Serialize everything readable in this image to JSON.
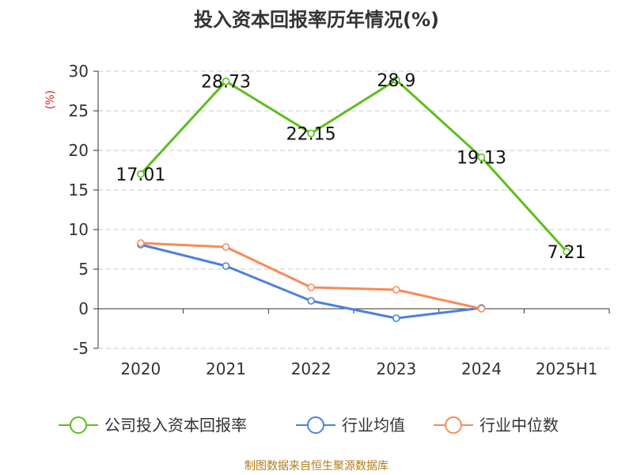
{
  "chart_data": {
    "type": "line",
    "title": "投入资本回报率历年情况(%)",
    "ylabel": "(%)",
    "xlabel": "",
    "categories": [
      "2020",
      "2021",
      "2022",
      "2023",
      "2024",
      "2025H1"
    ],
    "ylim": [
      -5,
      30
    ],
    "yticks": [
      30,
      25,
      20,
      15,
      10,
      5,
      0,
      -5
    ],
    "grid": true,
    "legend_position": "bottom",
    "series": [
      {
        "name": "公司投入资本回报率",
        "color": "#5cbf1c",
        "values": [
          17.01,
          28.73,
          22.15,
          28.9,
          19.13,
          7.21
        ],
        "labels": [
          "17.01",
          "28.73",
          "22.15",
          "28.9",
          "19.13",
          "7.21"
        ]
      },
      {
        "name": "行业均值",
        "color": "#4e7fdc",
        "values": [
          8.1,
          5.4,
          1.0,
          -1.2,
          0.1,
          null
        ]
      },
      {
        "name": "行业中位数",
        "color": "#f58c58",
        "values": [
          8.3,
          7.8,
          2.7,
          2.4,
          0.0,
          null
        ]
      }
    ]
  },
  "footer": "制图数据来自恒生聚源数据库"
}
